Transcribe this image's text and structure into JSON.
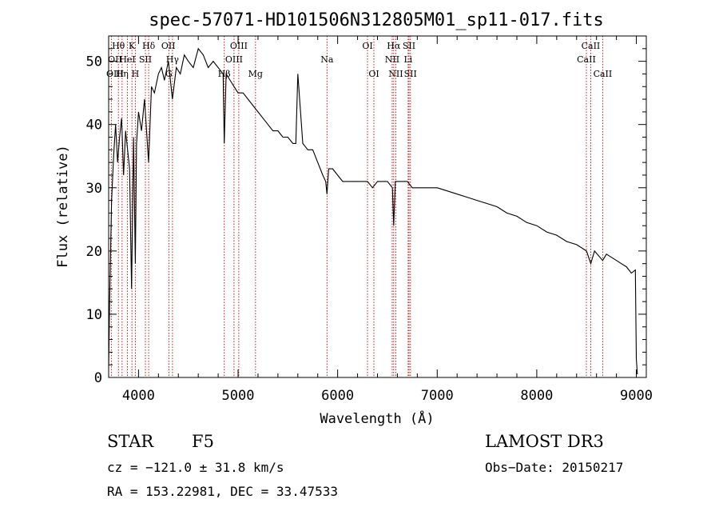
{
  "chart_data": {
    "type": "line",
    "title": "spec-57071-HD101506N312805M01_sp11-017.fits",
    "xlabel": "Wavelength (Å)",
    "ylabel": "Flux (relative)",
    "xlim": [
      3700,
      9100
    ],
    "ylim": [
      0,
      54
    ],
    "xticks": [
      4000,
      5000,
      6000,
      7000,
      8000,
      9000
    ],
    "yticks": [
      0,
      10,
      20,
      30,
      40,
      50
    ],
    "series": [
      {
        "name": "spectrum",
        "x": [
          3700,
          3710,
          3730,
          3750,
          3770,
          3790,
          3810,
          3830,
          3850,
          3870,
          3890,
          3910,
          3930,
          3950,
          3968,
          3980,
          4000,
          4030,
          4060,
          4101,
          4130,
          4160,
          4200,
          4230,
          4260,
          4300,
          4340,
          4380,
          4420,
          4460,
          4500,
          4550,
          4600,
          4650,
          4700,
          4750,
          4800,
          4850,
          4861,
          4880,
          4920,
          4960,
          5000,
          5050,
          5100,
          5150,
          5200,
          5250,
          5300,
          5350,
          5400,
          5450,
          5500,
          5550,
          5580,
          5600,
          5650,
          5700,
          5750,
          5800,
          5850,
          5880,
          5893,
          5910,
          5950,
          6000,
          6050,
          6100,
          6150,
          6200,
          6250,
          6300,
          6350,
          6400,
          6450,
          6500,
          6550,
          6563,
          6580,
          6650,
          6700,
          6750,
          6800,
          6900,
          7000,
          7100,
          7200,
          7300,
          7400,
          7500,
          7600,
          7700,
          7800,
          7900,
          8000,
          8100,
          8200,
          8300,
          8400,
          8500,
          8542,
          8580,
          8662,
          8700,
          8750,
          8800,
          8850,
          8900,
          8950,
          8990,
          9000,
          9010
        ],
        "y": [
          1.5,
          12,
          28,
          35,
          40,
          34,
          38,
          41,
          32,
          39,
          36,
          33,
          14,
          38,
          18,
          37,
          42,
          39,
          44,
          34,
          46,
          45,
          48,
          49,
          47,
          50,
          44,
          49,
          48,
          51,
          50,
          49,
          52,
          51,
          49,
          50,
          49,
          48,
          37,
          48,
          47,
          46,
          45,
          45,
          44,
          43,
          42,
          41,
          40,
          39,
          39,
          38,
          38,
          37,
          37,
          48,
          37,
          36,
          36,
          34,
          32,
          31,
          29,
          33,
          33,
          32,
          31,
          31,
          31,
          31,
          31,
          31,
          30,
          31,
          31,
          31,
          30,
          24,
          31,
          31,
          31,
          30,
          30,
          30,
          30,
          29.5,
          29,
          28.5,
          28,
          27.5,
          27,
          26,
          25.5,
          24.5,
          24,
          23,
          22.5,
          21.5,
          21,
          20,
          18,
          20,
          18.5,
          19.5,
          19,
          18.5,
          18,
          17.5,
          16.5,
          17,
          3,
          0.5
        ]
      }
    ],
    "line_labels": [
      {
        "text": "Hθ",
        "x": 3798,
        "row": 1
      },
      {
        "text": "K",
        "x": 3934,
        "row": 1
      },
      {
        "text": "Hδ",
        "x": 4102,
        "row": 1
      },
      {
        "text": "OII",
        "x": 4300,
        "row": 1
      },
      {
        "text": "OIII",
        "x": 5007,
        "row": 1
      },
      {
        "text": "OI",
        "x": 6300,
        "row": 1
      },
      {
        "text": "Hα",
        "x": 6563,
        "row": 1
      },
      {
        "text": "SII",
        "x": 6717,
        "row": 1
      },
      {
        "text": "CaII",
        "x": 8542,
        "row": 1
      },
      {
        "text": "OII",
        "x": 3727,
        "row": 2
      },
      {
        "text": "HeI",
        "x": 3889,
        "row": 2
      },
      {
        "text": "SII",
        "x": 4069,
        "row": 2
      },
      {
        "text": "Hγ",
        "x": 4341,
        "row": 2
      },
      {
        "text": "OIII",
        "x": 4959,
        "row": 2
      },
      {
        "text": "Na",
        "x": 5893,
        "row": 2
      },
      {
        "text": "NII",
        "x": 6548,
        "row": 2
      },
      {
        "text": "Li",
        "x": 6708,
        "row": 2
      },
      {
        "text": "CaII",
        "x": 8498,
        "row": 2
      },
      {
        "text": "OIII",
        "x": 3727,
        "row": 3
      },
      {
        "text": "Hη",
        "x": 3835,
        "row": 3
      },
      {
        "text": "H",
        "x": 3968,
        "row": 3
      },
      {
        "text": "G",
        "x": 4305,
        "row": 3
      },
      {
        "text": "Hβ",
        "x": 4861,
        "row": 3
      },
      {
        "text": "Mg",
        "x": 5175,
        "row": 3
      },
      {
        "text": "OI",
        "x": 6364,
        "row": 3
      },
      {
        "text": "NII",
        "x": 6584,
        "row": 3
      },
      {
        "text": "SII",
        "x": 6731,
        "row": 3
      },
      {
        "text": "CaII",
        "x": 8662,
        "row": 3
      }
    ],
    "line_markers": [
      3727,
      3798,
      3835,
      3889,
      3934,
      3968,
      4069,
      4102,
      4305,
      4341,
      4861,
      4959,
      5007,
      5175,
      5893,
      6300,
      6364,
      6548,
      6563,
      6584,
      6708,
      6717,
      6731,
      8498,
      8542,
      8662
    ]
  },
  "info": {
    "object_type": "STAR",
    "subclass": "F5",
    "survey": "LAMOST DR3",
    "cz": "cz = −121.0 ± 31.8 km/s",
    "obs_date": "Obs−Date: 20150217",
    "coords": "RA = 153.22981, DEC =  33.47533"
  },
  "colors": {
    "axis": "#000000",
    "spectrum": "#000000",
    "marker": "#cc0000"
  }
}
